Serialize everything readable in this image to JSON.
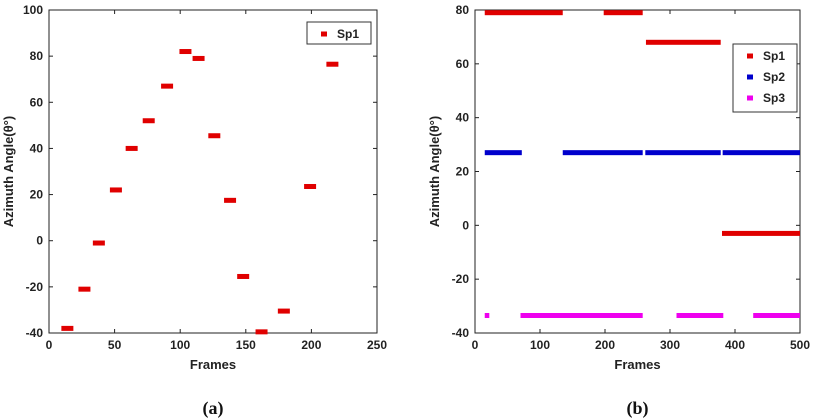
{
  "chart_data": [
    {
      "type": "scatter",
      "caption": "(a)",
      "xlabel": "Frames",
      "ylabel": "Azimuth Angle(θ°)",
      "xlim": [
        0,
        250
      ],
      "ylim": [
        -40,
        100
      ],
      "xticks": [
        0,
        50,
        100,
        150,
        200,
        250
      ],
      "yticks": [
        -40,
        -20,
        0,
        20,
        40,
        60,
        80,
        100
      ],
      "grid": false,
      "legend": "top-right",
      "series": [
        {
          "name": "Sp1",
          "color": "#e00000",
          "points": [
            [
              14,
              -38
            ],
            [
              27,
              -21
            ],
            [
              38,
              -1
            ],
            [
              51,
              22
            ],
            [
              63,
              40
            ],
            [
              76,
              52
            ],
            [
              90,
              67
            ],
            [
              104,
              82
            ],
            [
              114,
              79
            ],
            [
              126,
              45.5
            ],
            [
              138,
              17.5
            ],
            [
              148,
              -15.5
            ],
            [
              162,
              -39.5
            ],
            [
              179,
              -30.5
            ],
            [
              199,
              23.5
            ],
            [
              216,
              76.5
            ]
          ]
        }
      ]
    },
    {
      "type": "line",
      "caption": "(b)",
      "xlabel": "Frames",
      "ylabel": "Azimuth Angle(θ°)",
      "xlim": [
        0,
        500
      ],
      "ylim": [
        -40,
        80
      ],
      "xticks": [
        0,
        100,
        200,
        300,
        400,
        500
      ],
      "yticks": [
        -40,
        -20,
        0,
        20,
        40,
        60,
        80
      ],
      "grid": false,
      "legend": "top-right",
      "series": [
        {
          "name": "Sp1",
          "color": "#e00000",
          "segments": [
            {
              "x": [
                15,
                135
              ],
              "y": 79
            },
            {
              "x": [
                198,
                258
              ],
              "y": 79
            },
            {
              "x": [
                263,
                378
              ],
              "y": 68
            },
            {
              "x": [
                380,
                500
              ],
              "y": -3
            }
          ]
        },
        {
          "name": "Sp2",
          "color": "#0000cc",
          "segments": [
            {
              "x": [
                15,
                72
              ],
              "y": 27
            },
            {
              "x": [
                135,
                258
              ],
              "y": 27
            },
            {
              "x": [
                262,
                378
              ],
              "y": 27
            },
            {
              "x": [
                381,
                500
              ],
              "y": 27
            }
          ]
        },
        {
          "name": "Sp3",
          "color": "#ee00ee",
          "segments": [
            {
              "x": [
                15,
                22
              ],
              "y": -33.5
            },
            {
              "x": [
                70,
                258
              ],
              "y": -33.5
            },
            {
              "x": [
                310,
                382
              ],
              "y": -33.5
            },
            {
              "x": [
                428,
                500
              ],
              "y": -33.5
            }
          ]
        }
      ]
    }
  ]
}
